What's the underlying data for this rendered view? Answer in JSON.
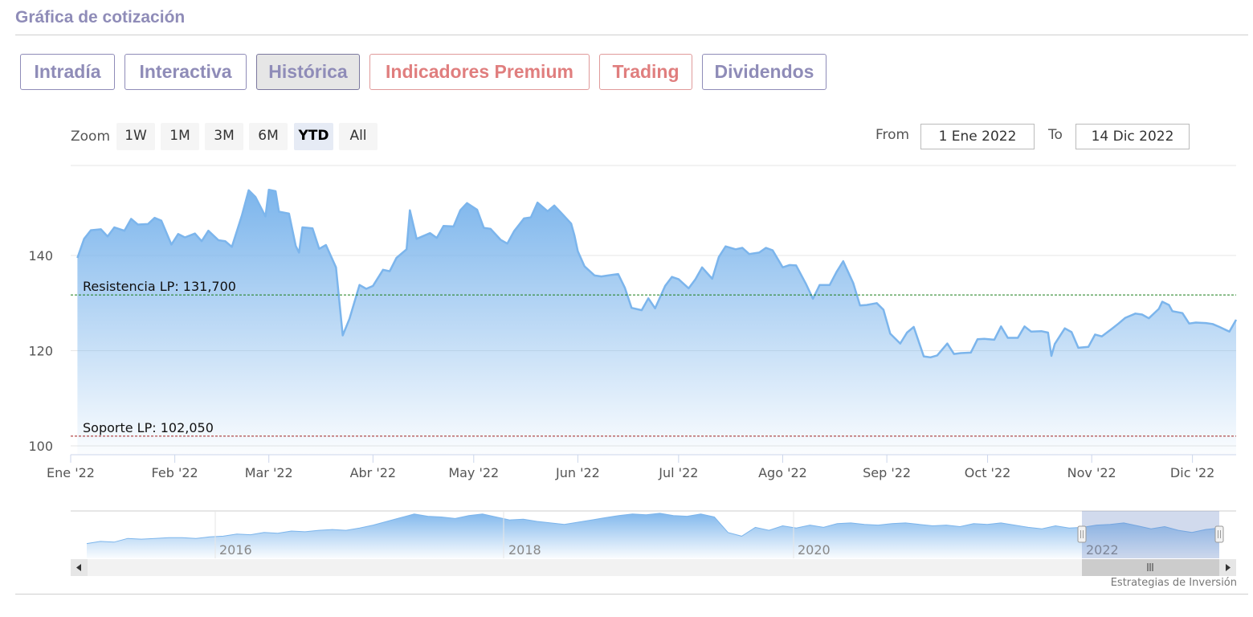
{
  "header": {
    "title": "Gráfica de cotización"
  },
  "tabs": [
    {
      "label": "Intradía",
      "active": false,
      "premium": false
    },
    {
      "label": "Interactiva",
      "active": false,
      "premium": false
    },
    {
      "label": "Histórica",
      "active": true,
      "premium": false
    },
    {
      "label": "Indicadores Premium",
      "active": false,
      "premium": true
    },
    {
      "label": "Trading",
      "active": false,
      "premium": true
    },
    {
      "label": "Dividendos",
      "active": false,
      "premium": false
    }
  ],
  "range_selector": {
    "zoom_label": "Zoom",
    "buttons": [
      "1W",
      "1M",
      "3M",
      "6M",
      "YTD",
      "All"
    ],
    "active_button": "YTD",
    "from_label": "From",
    "from_value": "1 Ene 2022",
    "to_label": "To",
    "to_value": "14 Dic 2022"
  },
  "chart_data": {
    "type": "area",
    "ylim": [
      100,
      155
    ],
    "y_ticks": [
      {
        "value": 100,
        "label": "100"
      },
      {
        "value": 120,
        "label": "120"
      },
      {
        "value": 140,
        "label": "140"
      }
    ],
    "x_ticks": [
      "Ene '22",
      "Feb '22",
      "Mar '22",
      "Abr '22",
      "May '22",
      "Jun '22",
      "Jul '22",
      "Ago '22",
      "Sep '22",
      "Oct '22",
      "Nov '22",
      "Dic '22"
    ],
    "x_range": [
      "2022-01-01",
      "2022-12-14"
    ],
    "grid": true,
    "colors": {
      "line": "#7cb5ec",
      "fill_top": "#7cb5ec",
      "resistance": "#1a7d1a",
      "support": "#a01f1f"
    },
    "series": [
      {
        "points": [
          [
            "2022-01-03",
            139.5
          ],
          [
            "2022-01-05",
            143.5
          ],
          [
            "2022-01-07",
            145.3
          ],
          [
            "2022-01-10",
            145.5
          ],
          [
            "2022-01-12",
            144.0
          ],
          [
            "2022-01-14",
            145.9
          ],
          [
            "2022-01-17",
            145.2
          ],
          [
            "2022-01-19",
            147.7
          ],
          [
            "2022-01-21",
            146.5
          ],
          [
            "2022-01-24",
            146.6
          ],
          [
            "2022-01-26",
            147.9
          ],
          [
            "2022-01-28",
            147.3
          ],
          [
            "2022-01-31",
            142.3
          ],
          [
            "2022-02-02",
            144.5
          ],
          [
            "2022-02-04",
            143.8
          ],
          [
            "2022-02-07",
            144.6
          ],
          [
            "2022-02-09",
            143.0
          ],
          [
            "2022-02-11",
            145.2
          ],
          [
            "2022-02-14",
            143.2
          ],
          [
            "2022-02-16",
            143.0
          ],
          [
            "2022-02-18",
            141.8
          ],
          [
            "2022-02-21",
            148.5
          ],
          [
            "2022-02-23",
            153.7
          ],
          [
            "2022-02-25",
            152.3
          ],
          [
            "2022-02-28",
            148.2
          ],
          [
            "2022-03-01",
            153.8
          ],
          [
            "2022-03-03",
            153.5
          ],
          [
            "2022-03-04",
            149.2
          ],
          [
            "2022-03-07",
            148.8
          ],
          [
            "2022-03-09",
            142.0
          ],
          [
            "2022-03-10",
            140.6
          ],
          [
            "2022-03-11",
            145.9
          ],
          [
            "2022-03-14",
            145.7
          ],
          [
            "2022-03-16",
            141.4
          ],
          [
            "2022-03-18",
            142.2
          ],
          [
            "2022-03-21",
            137.5
          ],
          [
            "2022-03-23",
            123.2
          ],
          [
            "2022-03-25",
            126.7
          ],
          [
            "2022-03-28",
            133.8
          ],
          [
            "2022-03-30",
            133.0
          ],
          [
            "2022-04-01",
            133.6
          ],
          [
            "2022-04-04",
            137.0
          ],
          [
            "2022-04-06",
            136.7
          ],
          [
            "2022-04-08",
            139.5
          ],
          [
            "2022-04-11",
            141.3
          ],
          [
            "2022-04-12",
            149.5
          ],
          [
            "2022-04-14",
            143.5
          ],
          [
            "2022-04-18",
            144.7
          ],
          [
            "2022-04-20",
            143.7
          ],
          [
            "2022-04-22",
            146.2
          ],
          [
            "2022-04-25",
            146.1
          ],
          [
            "2022-04-27",
            149.5
          ],
          [
            "2022-04-29",
            151.0
          ],
          [
            "2022-05-02",
            149.6
          ],
          [
            "2022-05-04",
            145.8
          ],
          [
            "2022-05-06",
            145.6
          ],
          [
            "2022-05-09",
            143.3
          ],
          [
            "2022-05-11",
            142.5
          ],
          [
            "2022-05-13",
            145.1
          ],
          [
            "2022-05-16",
            147.8
          ],
          [
            "2022-05-18",
            148.0
          ],
          [
            "2022-05-20",
            151.1
          ],
          [
            "2022-05-23",
            149.3
          ],
          [
            "2022-05-25",
            150.5
          ],
          [
            "2022-05-27",
            149.0
          ],
          [
            "2022-05-30",
            146.7
          ],
          [
            "2022-05-31",
            144.2
          ],
          [
            "2022-06-01",
            140.9
          ],
          [
            "2022-06-03",
            137.7
          ],
          [
            "2022-06-06",
            135.8
          ],
          [
            "2022-06-08",
            135.6
          ],
          [
            "2022-06-10",
            135.8
          ],
          [
            "2022-06-13",
            136.1
          ],
          [
            "2022-06-15",
            133.2
          ],
          [
            "2022-06-17",
            129.0
          ],
          [
            "2022-06-20",
            128.5
          ],
          [
            "2022-06-22",
            131.0
          ],
          [
            "2022-06-24",
            128.9
          ],
          [
            "2022-06-27",
            133.6
          ],
          [
            "2022-06-29",
            135.5
          ],
          [
            "2022-07-01",
            135.0
          ],
          [
            "2022-07-04",
            133.1
          ],
          [
            "2022-07-06",
            135.0
          ],
          [
            "2022-07-08",
            137.5
          ],
          [
            "2022-07-11",
            135.1
          ],
          [
            "2022-07-13",
            139.7
          ],
          [
            "2022-07-15",
            141.9
          ],
          [
            "2022-07-18",
            141.3
          ],
          [
            "2022-07-20",
            141.6
          ],
          [
            "2022-07-22",
            140.3
          ],
          [
            "2022-07-25",
            140.6
          ],
          [
            "2022-07-27",
            141.6
          ],
          [
            "2022-07-29",
            141.1
          ],
          [
            "2022-08-01",
            137.5
          ],
          [
            "2022-08-03",
            138.0
          ],
          [
            "2022-08-05",
            137.9
          ],
          [
            "2022-08-08",
            133.9
          ],
          [
            "2022-08-10",
            130.9
          ],
          [
            "2022-08-12",
            133.8
          ],
          [
            "2022-08-15",
            133.8
          ],
          [
            "2022-08-17",
            136.5
          ],
          [
            "2022-08-19",
            138.8
          ],
          [
            "2022-08-22",
            134.2
          ],
          [
            "2022-08-24",
            129.5
          ],
          [
            "2022-08-26",
            129.6
          ],
          [
            "2022-08-29",
            130.0
          ],
          [
            "2022-08-31",
            128.6
          ],
          [
            "2022-09-02",
            123.6
          ],
          [
            "2022-09-05",
            121.5
          ],
          [
            "2022-09-07",
            123.8
          ],
          [
            "2022-09-09",
            125.0
          ],
          [
            "2022-09-12",
            118.8
          ],
          [
            "2022-09-14",
            118.6
          ],
          [
            "2022-09-16",
            119.0
          ],
          [
            "2022-09-19",
            121.5
          ],
          [
            "2022-09-21",
            119.3
          ],
          [
            "2022-09-23",
            119.5
          ],
          [
            "2022-09-26",
            119.6
          ],
          [
            "2022-09-28",
            122.4
          ],
          [
            "2022-09-30",
            122.5
          ],
          [
            "2022-10-03",
            122.3
          ],
          [
            "2022-10-05",
            125.1
          ],
          [
            "2022-10-07",
            122.7
          ],
          [
            "2022-10-10",
            122.7
          ],
          [
            "2022-10-12",
            125.1
          ],
          [
            "2022-10-14",
            124.0
          ],
          [
            "2022-10-17",
            124.1
          ],
          [
            "2022-10-19",
            123.8
          ],
          [
            "2022-10-20",
            118.9
          ],
          [
            "2022-10-21",
            121.4
          ],
          [
            "2022-10-24",
            124.7
          ],
          [
            "2022-10-26",
            123.9
          ],
          [
            "2022-10-28",
            120.6
          ],
          [
            "2022-10-31",
            120.8
          ],
          [
            "2022-11-02",
            123.4
          ],
          [
            "2022-11-04",
            123.0
          ],
          [
            "2022-11-07",
            124.6
          ],
          [
            "2022-11-09",
            125.7
          ],
          [
            "2022-11-11",
            126.9
          ],
          [
            "2022-11-14",
            127.8
          ],
          [
            "2022-11-16",
            127.6
          ],
          [
            "2022-11-18",
            126.8
          ],
          [
            "2022-11-21",
            128.8
          ],
          [
            "2022-11-22",
            130.3
          ],
          [
            "2022-11-24",
            129.6
          ],
          [
            "2022-11-25",
            128.3
          ],
          [
            "2022-11-28",
            127.9
          ],
          [
            "2022-11-30",
            125.7
          ],
          [
            "2022-12-02",
            125.9
          ],
          [
            "2022-12-05",
            125.8
          ],
          [
            "2022-12-07",
            125.6
          ],
          [
            "2022-12-09",
            125.0
          ],
          [
            "2022-12-12",
            124.0
          ],
          [
            "2022-12-14",
            126.5
          ]
        ]
      }
    ],
    "plot_lines": [
      {
        "label": "Resistencia LP: 131,700",
        "value": 131.7,
        "color": "#1a7d1a"
      },
      {
        "label": "Soporte LP: 102,050",
        "value": 102.05,
        "color": "#a01f1f"
      }
    ],
    "navigator": {
      "x_labels": [
        "2016",
        "2018",
        "2020",
        "2022"
      ],
      "values": [
        20,
        23,
        22,
        27,
        26,
        27,
        28,
        28,
        27,
        29,
        30,
        33,
        32,
        35,
        34,
        37,
        36,
        38,
        39,
        38,
        41,
        45,
        50,
        55,
        60,
        57,
        56,
        54,
        58,
        60,
        56,
        52,
        53,
        50,
        48,
        46,
        49,
        52,
        55,
        58,
        60,
        59,
        61,
        58,
        57,
        60,
        56,
        35,
        30,
        42,
        38,
        44,
        41,
        45,
        42,
        47,
        48,
        46,
        45,
        47,
        48,
        46,
        44,
        45,
        43,
        47,
        46,
        48,
        45,
        42,
        40,
        44,
        41,
        42,
        45,
        46,
        48,
        44,
        40,
        43,
        38,
        35,
        39,
        41
      ],
      "selected_range_label": "2022"
    },
    "credits": "Estrategias de Inversión"
  }
}
